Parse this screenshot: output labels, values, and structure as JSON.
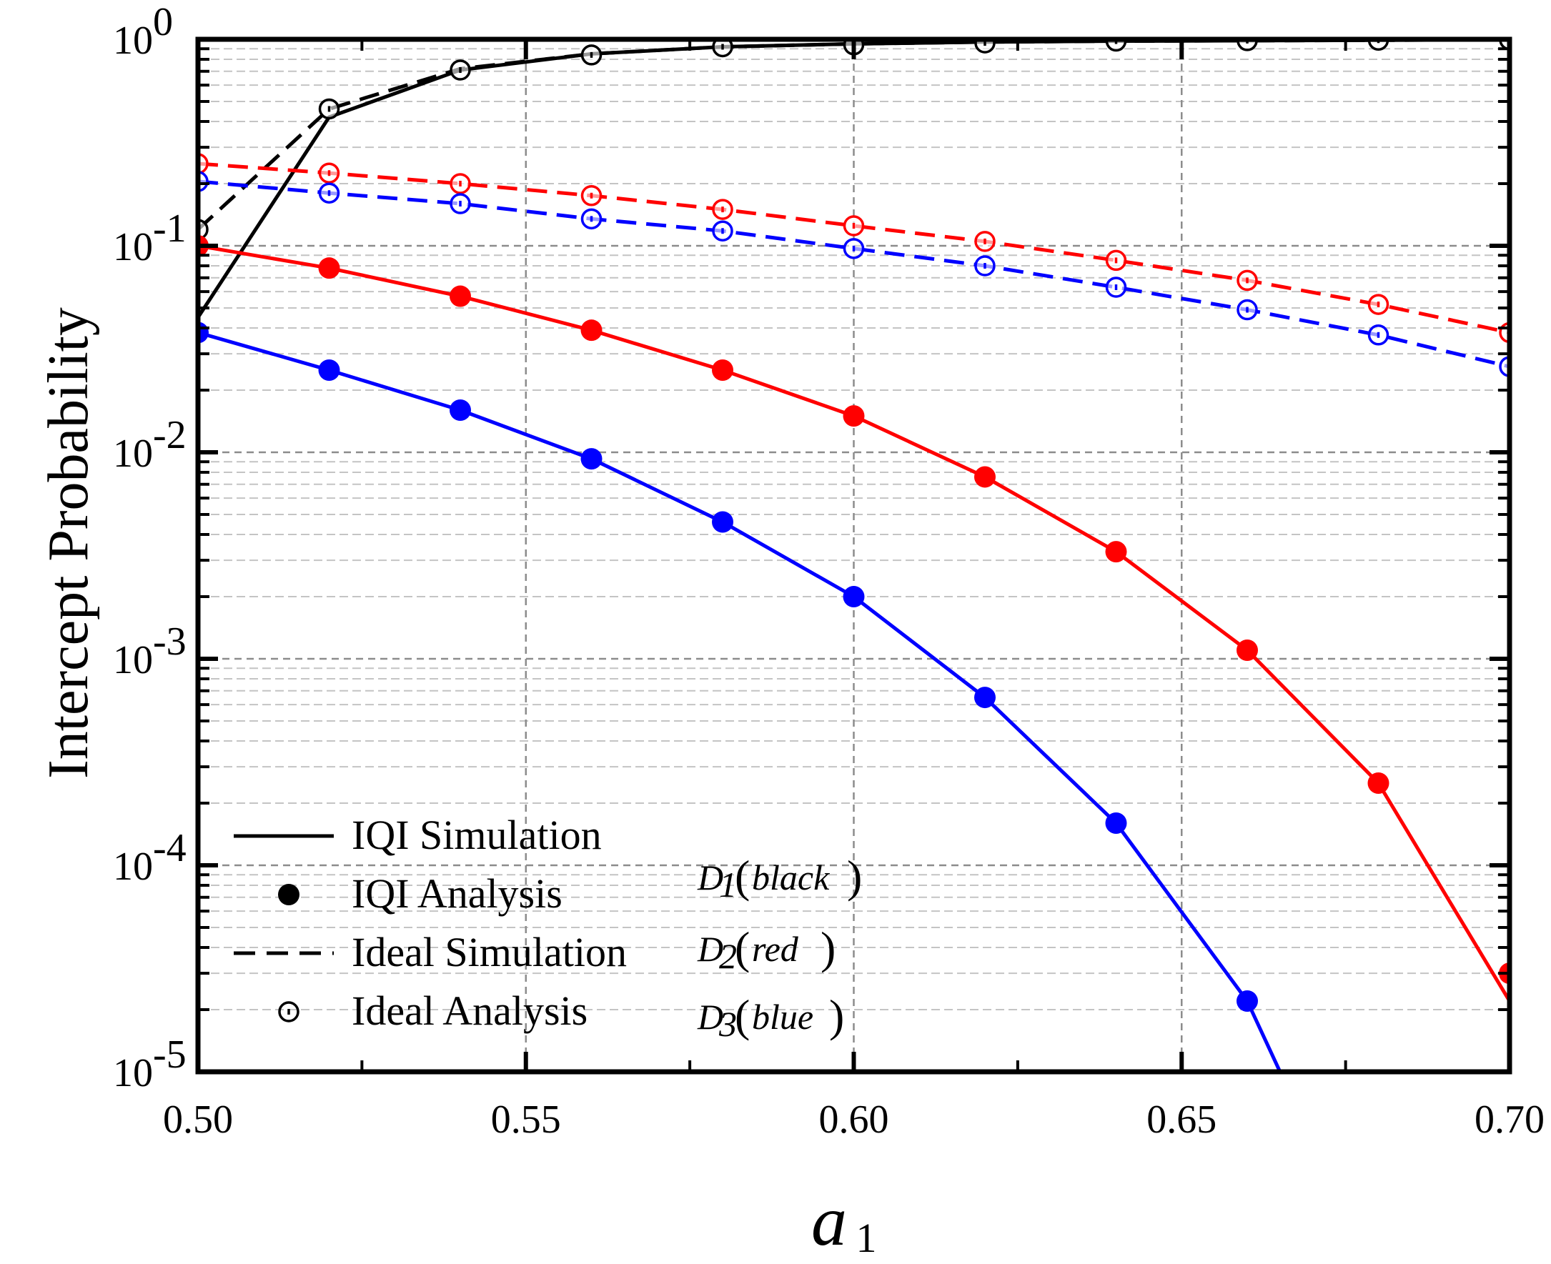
{
  "chart_data": {
    "type": "line",
    "xlabel": "a",
    "xlabel_sub": "1",
    "ylabel": "Intercept Probability",
    "yscale": "log",
    "xlim": [
      0.5,
      0.7
    ],
    "ylim": [
      1e-05,
      1
    ],
    "grid": true,
    "x_ticks": [
      "0.50",
      "0.55",
      "0.60",
      "0.65",
      "0.70"
    ],
    "y_ticks": [
      {
        "base": "10",
        "exp": "-5"
      },
      {
        "base": "10",
        "exp": "-4"
      },
      {
        "base": "10",
        "exp": "-3"
      },
      {
        "base": "10",
        "exp": "-2"
      },
      {
        "base": "10",
        "exp": "-1"
      },
      {
        "base": "10",
        "exp": "0"
      }
    ],
    "legend": {
      "position": "bottom-left",
      "entries": [
        "IQI Simulation",
        "IQI Analysis",
        "Ideal Simulation",
        "Ideal Analysis"
      ]
    },
    "annotations": [
      {
        "label": "D",
        "sub": "1",
        "paren": "black"
      },
      {
        "label": "D",
        "sub": "2",
        "paren": "red"
      },
      {
        "label": "D",
        "sub": "3",
        "paren": "blue"
      }
    ],
    "series": [
      {
        "name": "IQI Simulation D1",
        "kind": "iqi-sim",
        "color": "#000000",
        "x": [
          0.5,
          0.52,
          0.54,
          0.56,
          0.58,
          0.6,
          0.62,
          0.64,
          0.66,
          0.68,
          0.7
        ],
        "y": [
          0.045,
          0.42,
          0.71,
          0.85,
          0.92,
          0.95,
          0.97,
          0.98,
          0.985,
          0.99,
          0.995
        ]
      },
      {
        "name": "Ideal Simulation D1",
        "kind": "ideal-sim",
        "color": "#000000",
        "x": [
          0.5,
          0.52,
          0.54,
          0.56,
          0.58,
          0.6,
          0.62,
          0.64,
          0.66,
          0.68,
          0.7
        ],
        "y": [
          0.12,
          0.46,
          0.72,
          0.85,
          0.92,
          0.95,
          0.97,
          0.98,
          0.985,
          0.99,
          0.995
        ]
      },
      {
        "name": "Ideal Analysis D1",
        "kind": "ideal-ana",
        "color": "#000000",
        "x": [
          0.5,
          0.52,
          0.54,
          0.56,
          0.58,
          0.6,
          0.62,
          0.64,
          0.66,
          0.68,
          0.7
        ],
        "y": [
          0.12,
          0.46,
          0.71,
          0.84,
          0.92,
          0.94,
          0.96,
          0.98,
          0.985,
          0.99,
          0.995
        ]
      },
      {
        "name": "Ideal Simulation D2",
        "kind": "ideal-sim",
        "color": "#ff0000",
        "x": [
          0.5,
          0.52,
          0.54,
          0.56,
          0.58,
          0.6,
          0.62,
          0.64,
          0.66,
          0.68,
          0.7
        ],
        "y": [
          0.25,
          0.225,
          0.2,
          0.175,
          0.15,
          0.125,
          0.105,
          0.085,
          0.068,
          0.052,
          0.038
        ]
      },
      {
        "name": "Ideal Analysis D2",
        "kind": "ideal-ana",
        "color": "#ff0000",
        "x": [
          0.5,
          0.52,
          0.54,
          0.56,
          0.58,
          0.6,
          0.62,
          0.64,
          0.66,
          0.68,
          0.7
        ],
        "y": [
          0.25,
          0.225,
          0.2,
          0.175,
          0.15,
          0.125,
          0.105,
          0.085,
          0.068,
          0.052,
          0.038
        ]
      },
      {
        "name": "Ideal Simulation D3",
        "kind": "ideal-sim",
        "color": "#0000ff",
        "x": [
          0.5,
          0.52,
          0.54,
          0.56,
          0.58,
          0.6,
          0.62,
          0.64,
          0.66,
          0.68,
          0.7
        ],
        "y": [
          0.205,
          0.18,
          0.16,
          0.135,
          0.118,
          0.097,
          0.08,
          0.063,
          0.049,
          0.037,
          0.026
        ]
      },
      {
        "name": "Ideal Analysis D3",
        "kind": "ideal-ana",
        "color": "#0000ff",
        "x": [
          0.5,
          0.52,
          0.54,
          0.56,
          0.58,
          0.6,
          0.62,
          0.64,
          0.66,
          0.68,
          0.7
        ],
        "y": [
          0.205,
          0.18,
          0.16,
          0.135,
          0.118,
          0.097,
          0.08,
          0.063,
          0.049,
          0.037,
          0.026
        ]
      },
      {
        "name": "IQI Simulation D2",
        "kind": "iqi-sim",
        "color": "#ff0000",
        "x": [
          0.5,
          0.52,
          0.54,
          0.56,
          0.58,
          0.6,
          0.62,
          0.64,
          0.66,
          0.68,
          0.7
        ],
        "y": [
          0.1,
          0.078,
          0.057,
          0.039,
          0.025,
          0.015,
          0.0076,
          0.0033,
          0.0011,
          0.00025,
          2.2e-05
        ]
      },
      {
        "name": "IQI Analysis D2",
        "kind": "iqi-ana",
        "color": "#ff0000",
        "x": [
          0.5,
          0.52,
          0.54,
          0.56,
          0.58,
          0.6,
          0.62,
          0.64,
          0.66,
          0.68,
          0.7
        ],
        "y": [
          0.1,
          0.078,
          0.057,
          0.039,
          0.025,
          0.015,
          0.0076,
          0.0033,
          0.0011,
          0.00025,
          3e-05
        ]
      },
      {
        "name": "IQI Simulation D3",
        "kind": "iqi-sim",
        "color": "#0000ff",
        "x": [
          0.5,
          0.52,
          0.54,
          0.56,
          0.58,
          0.6,
          0.62,
          0.64,
          0.66,
          0.665
        ],
        "y": [
          0.038,
          0.025,
          0.016,
          0.0093,
          0.0046,
          0.002,
          0.00065,
          0.00016,
          2.2e-05,
          1e-05
        ]
      },
      {
        "name": "IQI Analysis D3",
        "kind": "iqi-ana",
        "color": "#0000ff",
        "x": [
          0.5,
          0.52,
          0.54,
          0.56,
          0.58,
          0.6,
          0.62,
          0.64,
          0.66
        ],
        "y": [
          0.038,
          0.025,
          0.016,
          0.0093,
          0.0046,
          0.002,
          0.00065,
          0.00016,
          2.2e-05
        ]
      }
    ]
  }
}
